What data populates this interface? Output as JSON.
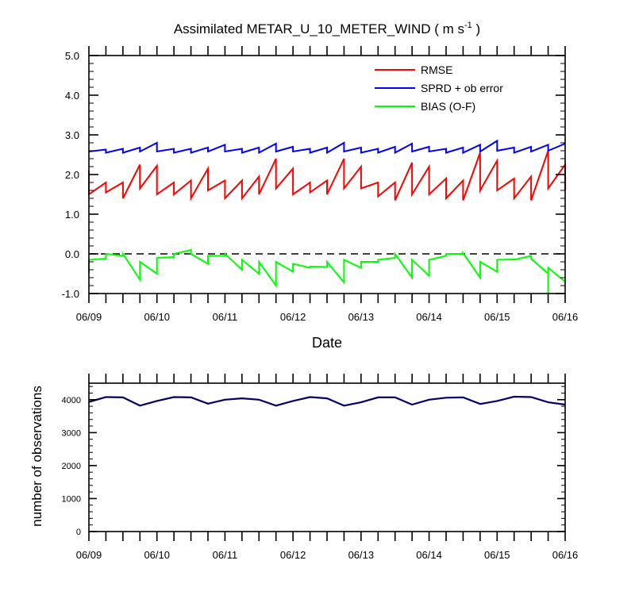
{
  "figure": {
    "title_main": "Assimilated METAR_U_10_METER_WIND ( m s",
    "title_sup": "-1",
    "title_close": " )"
  },
  "chart_data": [
    {
      "type": "line",
      "title": "Assimilated METAR_U_10_METER_WIND ( m s-1 )",
      "xlabel": "Date",
      "ylabel": "",
      "x_ticks": [
        "06/09",
        "06/10",
        "06/11",
        "06/12",
        "06/13",
        "06/14",
        "06/15",
        "06/16"
      ],
      "y_ticks": [
        "5.0",
        "4.0",
        "3.0",
        "2.0",
        "1.0",
        "0.0",
        "-1.0"
      ],
      "xlim": [
        0,
        7
      ],
      "ylim": [
        -1,
        5
      ],
      "zero_line": "dashed",
      "legend_position": "top-right",
      "series": [
        {
          "name": "RMSE",
          "color": "#ff0000",
          "points": [
            [
              0,
              2.1
            ],
            [
              0,
              1.5
            ],
            [
              0.25,
              1.8
            ],
            [
              0.25,
              1.55
            ],
            [
              0.5,
              1.8
            ],
            [
              0.5,
              1.4
            ],
            [
              0.75,
              2.25
            ],
            [
              0.75,
              1.65
            ],
            [
              1.0,
              2.22
            ],
            [
              1.0,
              1.5
            ],
            [
              1.25,
              1.8
            ],
            [
              1.25,
              1.5
            ],
            [
              1.5,
              1.85
            ],
            [
              1.5,
              1.4
            ],
            [
              1.75,
              2.15
            ],
            [
              1.75,
              1.6
            ],
            [
              2.0,
              1.85
            ],
            [
              2.0,
              1.4
            ],
            [
              2.25,
              1.85
            ],
            [
              2.25,
              1.4
            ],
            [
              2.5,
              1.95
            ],
            [
              2.5,
              1.5
            ],
            [
              2.75,
              2.4
            ],
            [
              2.75,
              1.65
            ],
            [
              3.0,
              2.15
            ],
            [
              3.0,
              1.5
            ],
            [
              3.25,
              1.8
            ],
            [
              3.25,
              1.55
            ],
            [
              3.5,
              1.85
            ],
            [
              3.5,
              1.5
            ],
            [
              3.75,
              2.4
            ],
            [
              3.75,
              1.65
            ],
            [
              4.0,
              2.2
            ],
            [
              4.0,
              1.65
            ],
            [
              4.25,
              1.8
            ],
            [
              4.25,
              1.45
            ],
            [
              4.5,
              1.8
            ],
            [
              4.5,
              1.35
            ],
            [
              4.75,
              2.3
            ],
            [
              4.75,
              1.5
            ],
            [
              5.0,
              2.2
            ],
            [
              5.0,
              1.5
            ],
            [
              5.25,
              1.9
            ],
            [
              5.25,
              1.4
            ],
            [
              5.5,
              1.85
            ],
            [
              5.5,
              1.35
            ],
            [
              5.75,
              2.55
            ],
            [
              5.75,
              1.6
            ],
            [
              6.0,
              2.35
            ],
            [
              6.0,
              1.6
            ],
            [
              6.25,
              1.9
            ],
            [
              6.25,
              1.4
            ],
            [
              6.5,
              1.95
            ],
            [
              6.5,
              1.35
            ],
            [
              6.75,
              2.6
            ],
            [
              6.75,
              1.65
            ],
            [
              7.0,
              2.25
            ],
            [
              7.0,
              1.6
            ]
          ]
        },
        {
          "name": "SPRD + ob error",
          "color": "#0000ff",
          "points": [
            [
              0,
              2.58
            ],
            [
              0.25,
              2.63
            ],
            [
              0.25,
              2.55
            ],
            [
              0.5,
              2.65
            ],
            [
              0.5,
              2.55
            ],
            [
              0.75,
              2.68
            ],
            [
              0.75,
              2.58
            ],
            [
              1.0,
              2.8
            ],
            [
              1.0,
              2.58
            ],
            [
              1.25,
              2.65
            ],
            [
              1.25,
              2.55
            ],
            [
              1.5,
              2.65
            ],
            [
              1.5,
              2.55
            ],
            [
              1.75,
              2.68
            ],
            [
              1.75,
              2.58
            ],
            [
              2.0,
              2.75
            ],
            [
              2.0,
              2.58
            ],
            [
              2.25,
              2.65
            ],
            [
              2.25,
              2.55
            ],
            [
              2.5,
              2.68
            ],
            [
              2.5,
              2.55
            ],
            [
              2.75,
              2.78
            ],
            [
              2.75,
              2.58
            ],
            [
              3.0,
              2.7
            ],
            [
              3.0,
              2.58
            ],
            [
              3.25,
              2.65
            ],
            [
              3.25,
              2.55
            ],
            [
              3.5,
              2.68
            ],
            [
              3.5,
              2.55
            ],
            [
              3.75,
              2.8
            ],
            [
              3.75,
              2.58
            ],
            [
              4.0,
              2.68
            ],
            [
              4.0,
              2.55
            ],
            [
              4.25,
              2.65
            ],
            [
              4.25,
              2.55
            ],
            [
              4.5,
              2.7
            ],
            [
              4.5,
              2.55
            ],
            [
              4.75,
              2.78
            ],
            [
              4.75,
              2.58
            ],
            [
              5.0,
              2.7
            ],
            [
              5.0,
              2.58
            ],
            [
              5.25,
              2.65
            ],
            [
              5.25,
              2.55
            ],
            [
              5.5,
              2.68
            ],
            [
              5.5,
              2.55
            ],
            [
              5.75,
              2.75
            ],
            [
              5.75,
              2.58
            ],
            [
              6.0,
              2.85
            ],
            [
              6.0,
              2.6
            ],
            [
              6.25,
              2.68
            ],
            [
              6.25,
              2.55
            ],
            [
              6.5,
              2.7
            ],
            [
              6.5,
              2.58
            ],
            [
              6.75,
              2.75
            ],
            [
              6.75,
              2.6
            ],
            [
              7.0,
              2.78
            ]
          ]
        },
        {
          "name": "BIAS (O-F)",
          "color": "#00ff00",
          "points": [
            [
              0,
              -0.5
            ],
            [
              0,
              -0.15
            ],
            [
              0.25,
              -0.12
            ],
            [
              0.25,
              0.0
            ],
            [
              0.5,
              -0.05
            ],
            [
              0.5,
              0.0
            ],
            [
              0.75,
              -0.65
            ],
            [
              0.75,
              -0.2
            ],
            [
              1.0,
              -0.5
            ],
            [
              1.0,
              -0.1
            ],
            [
              1.25,
              -0.08
            ],
            [
              1.25,
              0.0
            ],
            [
              1.5,
              0.1
            ],
            [
              1.5,
              0.0
            ],
            [
              1.75,
              -0.25
            ],
            [
              1.75,
              -0.05
            ],
            [
              2.0,
              -0.05
            ],
            [
              2.0,
              0.0
            ],
            [
              2.25,
              -0.4
            ],
            [
              2.25,
              -0.15
            ],
            [
              2.5,
              -0.5
            ],
            [
              2.5,
              -0.2
            ],
            [
              2.75,
              -0.8
            ],
            [
              2.75,
              -0.2
            ],
            [
              3.0,
              -0.45
            ],
            [
              3.0,
              -0.25
            ],
            [
              3.25,
              -0.35
            ],
            [
              3.25,
              -0.32
            ],
            [
              3.5,
              -0.33
            ],
            [
              3.5,
              -0.2
            ],
            [
              3.75,
              -0.72
            ],
            [
              3.75,
              -0.15
            ],
            [
              4.0,
              -0.35
            ],
            [
              4.0,
              -0.2
            ],
            [
              4.25,
              -0.2
            ],
            [
              4.25,
              -0.15
            ],
            [
              4.5,
              -0.1
            ],
            [
              4.5,
              0.0
            ],
            [
              4.75,
              -0.6
            ],
            [
              4.75,
              -0.15
            ],
            [
              5.0,
              -0.55
            ],
            [
              5.0,
              -0.15
            ],
            [
              5.25,
              -0.05
            ],
            [
              5.25,
              0.0
            ],
            [
              5.5,
              0.0
            ],
            [
              5.5,
              0.02
            ],
            [
              5.75,
              -0.6
            ],
            [
              5.75,
              -0.2
            ],
            [
              6.0,
              -0.45
            ],
            [
              6.0,
              -0.15
            ],
            [
              6.25,
              -0.14
            ],
            [
              6.25,
              -0.15
            ],
            [
              6.5,
              -0.05
            ],
            [
              6.5,
              -0.12
            ],
            [
              6.75,
              -0.5
            ],
            [
              6.75,
              -1.0
            ],
            [
              6.75,
              -0.35
            ],
            [
              7.0,
              -0.7
            ]
          ]
        }
      ]
    },
    {
      "type": "line",
      "title": "",
      "xlabel": "",
      "ylabel": "number of observations",
      "x_ticks": [
        "06/09",
        "06/10",
        "06/11",
        "06/12",
        "06/13",
        "06/14",
        "06/15",
        "06/16"
      ],
      "y_ticks": [
        "4000",
        "3000",
        "2000",
        "1000",
        "0"
      ],
      "xlim": [
        0,
        7
      ],
      "ylim": [
        0,
        4500
      ],
      "series": [
        {
          "name": "",
          "color": "#000066",
          "points": [
            [
              0,
              3930
            ],
            [
              0.25,
              4080
            ],
            [
              0.5,
              4070
            ],
            [
              0.75,
              3820
            ],
            [
              1.0,
              3960
            ],
            [
              1.25,
              4080
            ],
            [
              1.5,
              4070
            ],
            [
              1.75,
              3880
            ],
            [
              2.0,
              4000
            ],
            [
              2.25,
              4040
            ],
            [
              2.5,
              4000
            ],
            [
              2.75,
              3820
            ],
            [
              3.0,
              3960
            ],
            [
              3.25,
              4080
            ],
            [
              3.5,
              4040
            ],
            [
              3.75,
              3820
            ],
            [
              4.0,
              3920
            ],
            [
              4.25,
              4070
            ],
            [
              4.5,
              4070
            ],
            [
              4.75,
              3850
            ],
            [
              5.0,
              4000
            ],
            [
              5.25,
              4060
            ],
            [
              5.5,
              4070
            ],
            [
              5.75,
              3870
            ],
            [
              6.0,
              3960
            ],
            [
              6.25,
              4090
            ],
            [
              6.5,
              4080
            ],
            [
              6.75,
              3920
            ],
            [
              7.0,
              3850
            ]
          ]
        }
      ]
    }
  ]
}
